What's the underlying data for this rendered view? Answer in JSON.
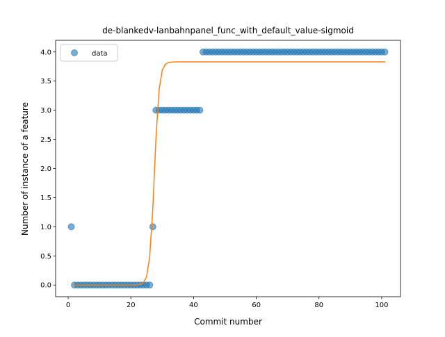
{
  "chart_data": {
    "type": "scatter",
    "title": "de-blankedv-lanbahnpanel_func_with_default_value-sigmoid",
    "xlabel": "Commit number",
    "ylabel": "Number of instance of a feature",
    "xlim": [
      -4,
      106
    ],
    "ylim": [
      -0.2,
      4.2
    ],
    "xticks": [
      0,
      20,
      40,
      60,
      80,
      100
    ],
    "yticks": [
      0.0,
      0.5,
      1.0,
      1.5,
      2.0,
      2.5,
      3.0,
      3.5,
      4.0
    ],
    "xtick_labels": [
      "0",
      "20",
      "40",
      "60",
      "80",
      "100"
    ],
    "ytick_labels": [
      "0.0",
      "0.5",
      "1.0",
      "1.5",
      "2.0",
      "2.5",
      "3.0",
      "3.5",
      "4.0"
    ],
    "grid": false,
    "legend": {
      "placement": "top-left",
      "entries": [
        "data"
      ]
    },
    "colors": {
      "data": "#1f77b4",
      "fit": "#ff7f0e"
    },
    "series": [
      {
        "name": "data",
        "kind": "scatter",
        "segments": [
          {
            "x_from": 1,
            "x_to": 1,
            "y": 1
          },
          {
            "x_from": 2,
            "x_to": 26,
            "y": 0
          },
          {
            "x_from": 27,
            "x_to": 27,
            "y": 1
          },
          {
            "x_from": 28,
            "x_to": 42,
            "y": 3
          },
          {
            "x_from": 43,
            "x_to": 101,
            "y": 4
          }
        ]
      },
      {
        "kind": "line",
        "sigmoid": {
          "L": 3.83,
          "k": 1.3,
          "x0": 27.5,
          "b": 0.0
        },
        "x_range": [
          2,
          101
        ]
      }
    ]
  }
}
